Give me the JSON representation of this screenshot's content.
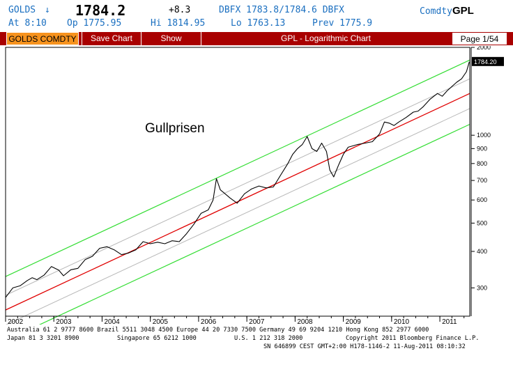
{
  "header": {
    "ticker": "GOLDS",
    "arrow": "↓",
    "price": "1784.2",
    "change": "+8.3",
    "quote": "DBFX 1783.8/1784.6 DBFX",
    "asset_prefix": "Comdty",
    "asset_code": "GPL",
    "at": "At  8:10",
    "open": "Op 1775.95",
    "high": "Hi 1814.95",
    "low": "Lo 1763.13",
    "prev": "Prev 1775.9"
  },
  "toolbar": {
    "security": "GOLDS COMDTY",
    "save_chart": "Save Chart",
    "show": "Show",
    "title": "GPL - Logarithmic Chart",
    "page": "Page 1/54"
  },
  "colors": {
    "brand_red": "#a90000",
    "security_orange": "#f7931e",
    "channel_green": "#33dd33",
    "regression_red": "#e00000",
    "inner_grey": "#b8b8b8",
    "price_line": "#000000"
  },
  "chart_data": {
    "type": "line",
    "title": "Gullprisen",
    "scale": "log",
    "ylim": [
      240,
      2000
    ],
    "xlim": [
      2002.0,
      2011.62
    ],
    "y_ticks": [
      2000,
      1000,
      900,
      800,
      700,
      600,
      500,
      400,
      300
    ],
    "x_ticks": [
      "2002",
      "2003",
      "2004",
      "2005",
      "2006",
      "2007",
      "2008",
      "2009",
      "2010",
      "2011"
    ],
    "last_price_label": "1784.20",
    "series": [
      {
        "role": "price",
        "x": [
          2002.0,
          2002.15,
          2002.3,
          2002.45,
          2002.55,
          2002.65,
          2002.8,
          2002.95,
          2003.1,
          2003.2,
          2003.35,
          2003.5,
          2003.65,
          2003.8,
          2003.95,
          2004.1,
          2004.25,
          2004.4,
          2004.55,
          2004.7,
          2004.85,
          2005.0,
          2005.15,
          2005.3,
          2005.45,
          2005.6,
          2005.75,
          2005.9,
          2006.05,
          2006.2,
          2006.3,
          2006.37,
          2006.45,
          2006.55,
          2006.65,
          2006.8,
          2006.95,
          2007.1,
          2007.25,
          2007.4,
          2007.55,
          2007.7,
          2007.85,
          2007.95,
          2008.05,
          2008.15,
          2008.25,
          2008.35,
          2008.45,
          2008.55,
          2008.65,
          2008.72,
          2008.8,
          2008.9,
          2009.0,
          2009.1,
          2009.2,
          2009.3,
          2009.45,
          2009.6,
          2009.75,
          2009.85,
          2009.95,
          2010.05,
          2010.15,
          2010.3,
          2010.45,
          2010.55,
          2010.65,
          2010.8,
          2010.95,
          2011.05,
          2011.15,
          2011.25,
          2011.35,
          2011.45,
          2011.55,
          2011.61
        ],
        "values": [
          278,
          300,
          305,
          318,
          325,
          320,
          332,
          355,
          345,
          330,
          346,
          350,
          375,
          385,
          410,
          415,
          405,
          390,
          395,
          405,
          432,
          425,
          430,
          425,
          435,
          432,
          460,
          495,
          540,
          555,
          600,
          710,
          650,
          630,
          610,
          585,
          630,
          655,
          670,
          660,
          665,
          730,
          800,
          860,
          900,
          930,
          990,
          900,
          880,
          940,
          880,
          760,
          720,
          790,
          860,
          910,
          920,
          930,
          940,
          950,
          1010,
          1110,
          1100,
          1080,
          1110,
          1150,
          1200,
          1210,
          1250,
          1330,
          1390,
          1360,
          1420,
          1470,
          1520,
          1560,
          1650,
          1784
        ]
      },
      {
        "role": "regression",
        "x": [
          2002.0,
          2011.62
        ],
        "values": [
          252,
          1390
        ]
      },
      {
        "role": "channel-upper",
        "x": [
          2002.0,
          2011.62
        ],
        "values": [
          328,
          1810
        ]
      },
      {
        "role": "channel-lower",
        "x": [
          2002.0,
          2011.62
        ],
        "values": [
          198,
          1090
        ]
      },
      {
        "role": "inner-upper",
        "x": [
          2002.0,
          2011.62
        ],
        "values": [
          283,
          1560
        ]
      },
      {
        "role": "inner-lower",
        "x": [
          2002.0,
          2011.62
        ],
        "values": [
          224,
          1235
        ]
      }
    ]
  },
  "footer": {
    "line1": "Australia 61 2 9777 8600 Brazil 5511 3048 4500 Europe 44 20 7330 7500 Germany 49 69 9204 1210 Hong Kong 852 2977 6000",
    "line2_left": "Japan 81 3 3201 8900",
    "line2_mid1": "Singapore 65 6212 1000",
    "line2_mid2": "U.S. 1 212 318 2000",
    "line2_right": "Copyright 2011 Bloomberg Finance L.P.",
    "line3": "SN 646899 CEST GMT+2:00 H178-1146-2 11-Aug-2011 08:10:32"
  }
}
